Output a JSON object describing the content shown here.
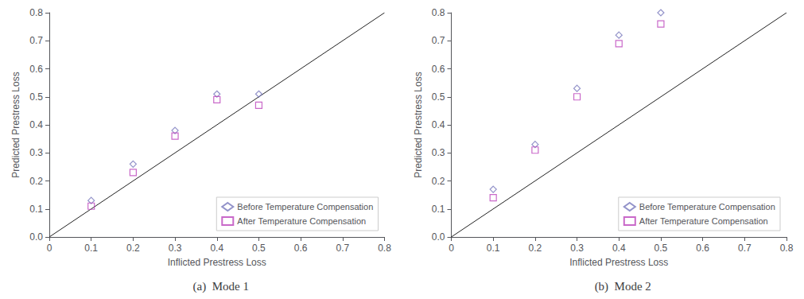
{
  "chart_data": [
    {
      "type": "scatter",
      "title": "(a)  Mode 1",
      "xlabel": "Inflicted Prestress Loss",
      "ylabel": "Predicted Prestress Loss",
      "xlim": [
        0,
        0.8
      ],
      "ylim": [
        0,
        0.8
      ],
      "xticks": [
        0,
        0.1,
        0.2,
        0.3,
        0.4,
        0.5,
        0.6,
        0.7,
        0.8
      ],
      "yticks": [
        {
          "value": 0,
          "label": "0.0"
        },
        0.1,
        0.2,
        0.3,
        0.4,
        0.5,
        0.6,
        0.7,
        0.8
      ],
      "grid": false,
      "legend": "lower right",
      "series": [
        {
          "name": "Before Temperature Compensation",
          "color": "#7777bb",
          "marker": "diamond",
          "x": [
            0.1,
            0.2,
            0.3,
            0.4,
            0.5
          ],
          "values": [
            0.13,
            0.26,
            0.38,
            0.51,
            0.51
          ]
        },
        {
          "name": "After Temperature Compensation",
          "color": "#bb44bb",
          "marker": "square",
          "x": [
            0.1,
            0.2,
            0.3,
            0.4,
            0.5
          ],
          "values": [
            0.11,
            0.23,
            0.36,
            0.49,
            0.47
          ]
        },
        {
          "type": "line",
          "color": "#222222",
          "x": [
            0.0,
            0.8
          ],
          "values": [
            0.0,
            0.8
          ]
        }
      ]
    },
    {
      "type": "scatter",
      "title": "(b)  Mode 2",
      "xlabel": "Inflicted Prestress Loss",
      "ylabel": "Predicted Prestress Loss",
      "xlim": [
        0,
        0.8
      ],
      "ylim": [
        0,
        0.8
      ],
      "xticks": [
        0,
        0.1,
        0.2,
        0.3,
        0.4,
        0.5,
        0.6,
        0.7,
        0.8
      ],
      "yticks": [
        {
          "value": 0,
          "label": "0.0"
        },
        0.1,
        0.2,
        0.3,
        0.4,
        0.5,
        0.6,
        0.7,
        0.8
      ],
      "grid": false,
      "legend": "lower right",
      "series": [
        {
          "name": "Before Temperature Compensation",
          "color": "#7777bb",
          "marker": "diamond",
          "x": [
            0.1,
            0.2,
            0.3,
            0.4,
            0.5
          ],
          "values": [
            0.17,
            0.33,
            0.53,
            0.72,
            0.8
          ]
        },
        {
          "name": "After Temperature Compensation",
          "color": "#bb44bb",
          "marker": "square",
          "x": [
            0.1,
            0.2,
            0.3,
            0.4,
            0.5
          ],
          "values": [
            0.14,
            0.31,
            0.5,
            0.69,
            0.76
          ]
        },
        {
          "type": "line",
          "color": "#222222",
          "x": [
            0.0,
            0.8
          ],
          "values": [
            0.0,
            0.8
          ]
        }
      ]
    }
  ]
}
